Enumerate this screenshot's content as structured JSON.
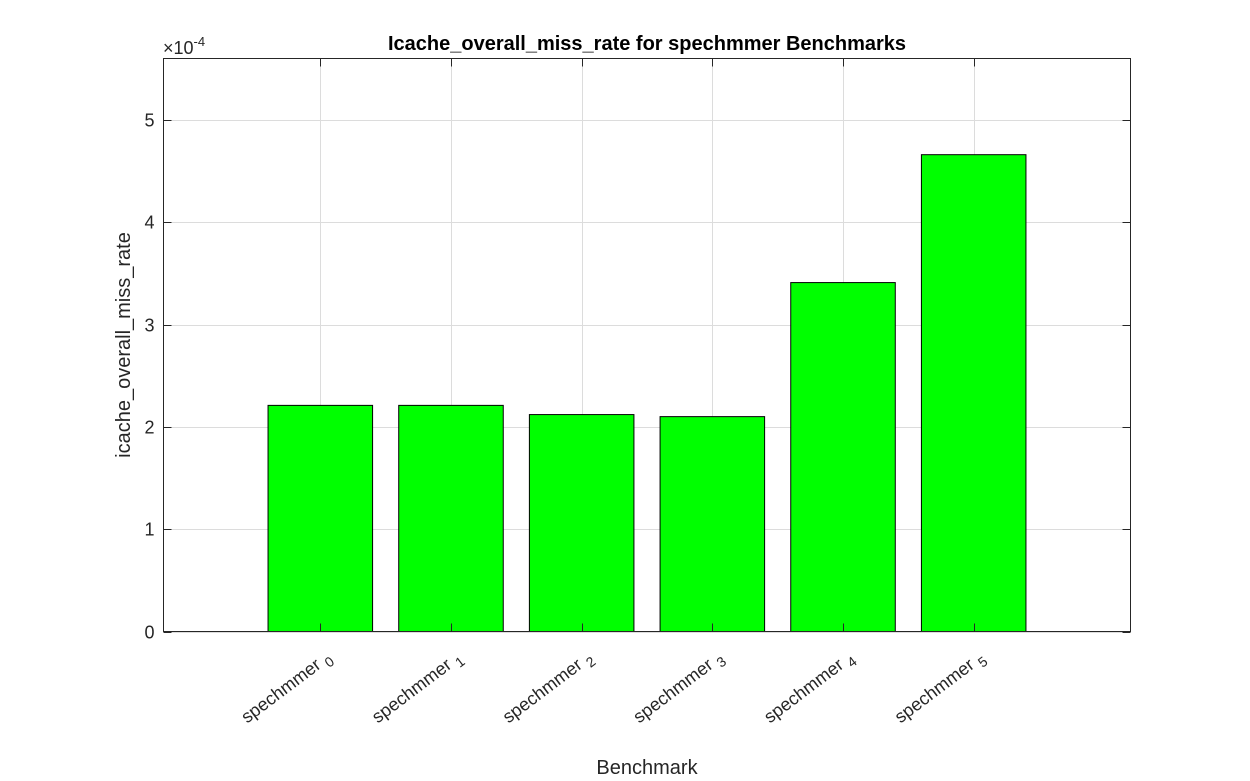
{
  "chart_data": {
    "type": "bar",
    "title": "Icache_overall_miss_rate for spechmmer Benchmarks",
    "xlabel": "Benchmark",
    "ylabel": "icache_overall_miss_rate",
    "y_exponent_base": "×10",
    "y_exponent_power": "-4",
    "categories": [
      {
        "base": "spechmmer",
        "sub": "0"
      },
      {
        "base": "spechmmer",
        "sub": "1"
      },
      {
        "base": "spechmmer",
        "sub": "2"
      },
      {
        "base": "spechmmer",
        "sub": "3"
      },
      {
        "base": "spechmmer",
        "sub": "4"
      },
      {
        "base": "spechmmer",
        "sub": "5"
      }
    ],
    "values": [
      2.21,
      2.21,
      2.12,
      2.1,
      3.41,
      4.66
    ],
    "value_scale": "1e-4",
    "ylim": [
      0,
      5.6
    ],
    "yticks": [
      0,
      1,
      2,
      3,
      4,
      5
    ],
    "grid": true,
    "bar_color": "#00ff00"
  }
}
